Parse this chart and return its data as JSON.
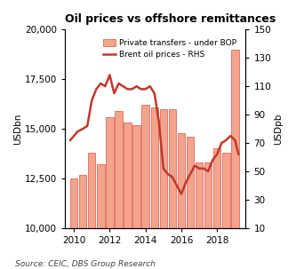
{
  "title": "Oil prices vs offshore remittances",
  "left_ylabel": "USDbn",
  "right_ylabel": "USDpb",
  "source_text": "Source: CEIC, DBS Group Research",
  "bar_color": "#f4a48a",
  "bar_edge_color": "#d9534f",
  "line_color": "#c0392b",
  "ylim_left": [
    10000,
    20000
  ],
  "ylim_right": [
    10,
    150
  ],
  "yticks_left": [
    10000,
    12500,
    15000,
    17500,
    20000
  ],
  "yticks_right": [
    10,
    30,
    50,
    70,
    90,
    110,
    130,
    150
  ],
  "bar_years": [
    2010.0,
    2010.5,
    2011.0,
    2011.5,
    2012.0,
    2012.5,
    2013.0,
    2013.5,
    2014.0,
    2014.5,
    2015.0,
    2015.5,
    2016.0,
    2016.5,
    2017.0,
    2017.5,
    2018.0,
    2018.5,
    2019.0
  ],
  "bar_values": [
    12500,
    12700,
    13800,
    13200,
    15600,
    15900,
    15300,
    15200,
    16200,
    16100,
    16000,
    16000,
    14800,
    14600,
    13300,
    13300,
    14000,
    13800,
    19000
  ],
  "line_years": [
    2009.8,
    2010.2,
    2010.5,
    2010.75,
    2011.0,
    2011.25,
    2011.5,
    2011.75,
    2012.0,
    2012.25,
    2012.5,
    2012.75,
    2013.0,
    2013.25,
    2013.5,
    2013.75,
    2014.0,
    2014.25,
    2014.5,
    2014.75,
    2015.0,
    2015.25,
    2015.5,
    2015.75,
    2016.0,
    2016.25,
    2016.5,
    2016.75,
    2017.0,
    2017.25,
    2017.5,
    2017.75,
    2018.0,
    2018.25,
    2018.5,
    2018.75,
    2019.0,
    2019.2
  ],
  "line_values": [
    72,
    78,
    80,
    82,
    100,
    108,
    112,
    110,
    118,
    105,
    112,
    110,
    108,
    108,
    110,
    108,
    108,
    110,
    105,
    85,
    52,
    48,
    46,
    40,
    34,
    42,
    48,
    54,
    52,
    52,
    50,
    58,
    62,
    70,
    72,
    75,
    72,
    62
  ],
  "xticks": [
    2010,
    2012,
    2014,
    2016,
    2018
  ],
  "xlim": [
    2009.5,
    2019.6
  ]
}
